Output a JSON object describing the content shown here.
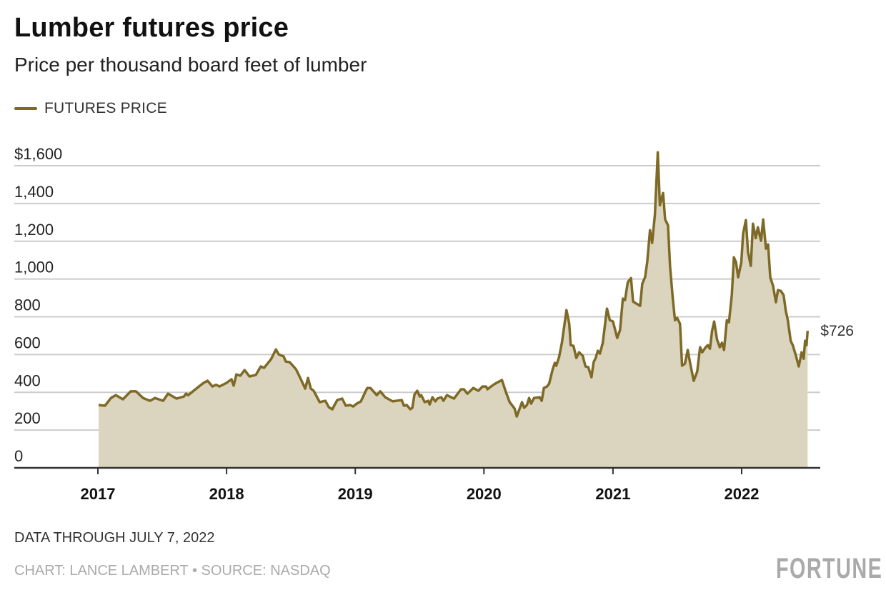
{
  "title": "Lumber futures price",
  "subtitle": "Price per thousand board feet of lumber",
  "legend": {
    "label": "FUTURES PRICE",
    "color": "#7e6a26"
  },
  "footer": {
    "note": "DATA THROUGH JULY 7, 2022",
    "credit": "CHART: LANCE LAMBERT • SOURCE: NASDAQ",
    "logo": "FORTUNE"
  },
  "colors": {
    "line": "#7e6a26",
    "fill": "#dbd4bf",
    "grid": "#cccccc",
    "axis": "#333333"
  },
  "chart_data": {
    "type": "area",
    "title": "Lumber futures price",
    "subtitle": "Price per thousand board feet of lumber",
    "xlabel": "",
    "ylabel": "",
    "ylim": [
      0,
      1600
    ],
    "xlim": [
      "2017-01-01",
      "2022-07-07"
    ],
    "grid": true,
    "legend_position": "top-left",
    "y_ticks": [
      {
        "value": 0,
        "label": "0"
      },
      {
        "value": 200,
        "label": "200"
      },
      {
        "value": 400,
        "label": "400"
      },
      {
        "value": 600,
        "label": "600"
      },
      {
        "value": 800,
        "label": "800"
      },
      {
        "value": 1000,
        "label": "1,000"
      },
      {
        "value": 1200,
        "label": "1,200"
      },
      {
        "value": 1400,
        "label": "1,400"
      },
      {
        "value": 1600,
        "label": "$1,600"
      }
    ],
    "x_ticks": [
      {
        "value": "2017-01-01",
        "label": "2017"
      },
      {
        "value": "2018-01-01",
        "label": "2018"
      },
      {
        "value": "2019-01-01",
        "label": "2019"
      },
      {
        "value": "2020-01-01",
        "label": "2020"
      },
      {
        "value": "2021-01-01",
        "label": "2021"
      },
      {
        "value": "2022-01-01",
        "label": "2022"
      }
    ],
    "end_label": "$726",
    "series": [
      {
        "name": "FUTURES PRICE",
        "points": [
          [
            "2017-01-03",
            333
          ],
          [
            "2017-01-21",
            329
          ],
          [
            "2017-02-07",
            370
          ],
          [
            "2017-02-21",
            385
          ],
          [
            "2017-03-13",
            363
          ],
          [
            "2017-04-04",
            405
          ],
          [
            "2017-04-19",
            405
          ],
          [
            "2017-05-09",
            370
          ],
          [
            "2017-05-29",
            355
          ],
          [
            "2017-06-12",
            370
          ],
          [
            "2017-07-05",
            355
          ],
          [
            "2017-07-19",
            393
          ],
          [
            "2017-08-12",
            367
          ],
          [
            "2017-09-02",
            378
          ],
          [
            "2017-09-08",
            393
          ],
          [
            "2017-09-14",
            385
          ],
          [
            "2017-10-12",
            427
          ],
          [
            "2017-10-28",
            450
          ],
          [
            "2017-11-08",
            461
          ],
          [
            "2017-11-22",
            431
          ],
          [
            "2017-12-02",
            440
          ],
          [
            "2017-12-12",
            431
          ],
          [
            "2018-01-01",
            450
          ],
          [
            "2018-01-15",
            469
          ],
          [
            "2018-01-21",
            435
          ],
          [
            "2018-01-29",
            495
          ],
          [
            "2018-02-09",
            488
          ],
          [
            "2018-02-21",
            518
          ],
          [
            "2018-03-07",
            484
          ],
          [
            "2018-03-25",
            492
          ],
          [
            "2018-04-08",
            537
          ],
          [
            "2018-04-17",
            529
          ],
          [
            "2018-05-07",
            575
          ],
          [
            "2018-05-21",
            627
          ],
          [
            "2018-05-29",
            601
          ],
          [
            "2018-06-12",
            590
          ],
          [
            "2018-06-18",
            563
          ],
          [
            "2018-06-29",
            560
          ],
          [
            "2018-07-17",
            522
          ],
          [
            "2018-07-27",
            484
          ],
          [
            "2018-08-12",
            420
          ],
          [
            "2018-08-20",
            476
          ],
          [
            "2018-08-28",
            420
          ],
          [
            "2018-09-05",
            408
          ],
          [
            "2018-09-22",
            348
          ],
          [
            "2018-10-08",
            355
          ],
          [
            "2018-10-18",
            321
          ],
          [
            "2018-10-28",
            310
          ],
          [
            "2018-11-11",
            359
          ],
          [
            "2018-11-25",
            367
          ],
          [
            "2018-12-05",
            329
          ],
          [
            "2018-12-17",
            333
          ],
          [
            "2018-12-26",
            325
          ],
          [
            "2019-01-05",
            340
          ],
          [
            "2019-01-17",
            352
          ],
          [
            "2019-01-31",
            408
          ],
          [
            "2019-02-04",
            423
          ],
          [
            "2019-02-13",
            423
          ],
          [
            "2019-03-03",
            385
          ],
          [
            "2019-03-13",
            405
          ],
          [
            "2019-03-27",
            374
          ],
          [
            "2019-04-17",
            352
          ],
          [
            "2019-05-13",
            359
          ],
          [
            "2019-05-19",
            329
          ],
          [
            "2019-05-27",
            333
          ],
          [
            "2019-06-06",
            310
          ],
          [
            "2019-06-12",
            318
          ],
          [
            "2019-06-18",
            389
          ],
          [
            "2019-06-26",
            408
          ],
          [
            "2019-07-03",
            378
          ],
          [
            "2019-07-07",
            385
          ],
          [
            "2019-07-17",
            348
          ],
          [
            "2019-07-27",
            355
          ],
          [
            "2019-07-31",
            336
          ],
          [
            "2019-08-08",
            374
          ],
          [
            "2019-08-16",
            352
          ],
          [
            "2019-08-22",
            367
          ],
          [
            "2019-09-02",
            374
          ],
          [
            "2019-09-08",
            355
          ],
          [
            "2019-09-18",
            385
          ],
          [
            "2019-10-08",
            367
          ],
          [
            "2019-10-28",
            416
          ],
          [
            "2019-11-05",
            416
          ],
          [
            "2019-11-15",
            393
          ],
          [
            "2019-12-02",
            423
          ],
          [
            "2019-12-16",
            408
          ],
          [
            "2019-12-28",
            431
          ],
          [
            "2020-01-07",
            431
          ],
          [
            "2020-01-11",
            416
          ],
          [
            "2020-01-21",
            431
          ],
          [
            "2020-02-02",
            446
          ],
          [
            "2020-02-21",
            465
          ],
          [
            "2020-03-02",
            408
          ],
          [
            "2020-03-14",
            348
          ],
          [
            "2020-03-28",
            314
          ],
          [
            "2020-04-03",
            272
          ],
          [
            "2020-04-18",
            348
          ],
          [
            "2020-04-24",
            318
          ],
          [
            "2020-05-02",
            333
          ],
          [
            "2020-05-08",
            370
          ],
          [
            "2020-05-14",
            340
          ],
          [
            "2020-05-22",
            370
          ],
          [
            "2020-06-07",
            374
          ],
          [
            "2020-06-13",
            355
          ],
          [
            "2020-06-19",
            423
          ],
          [
            "2020-06-28",
            431
          ],
          [
            "2020-07-04",
            446
          ],
          [
            "2020-07-14",
            522
          ],
          [
            "2020-07-20",
            556
          ],
          [
            "2020-07-24",
            541
          ],
          [
            "2020-08-01",
            586
          ],
          [
            "2020-08-09",
            662
          ],
          [
            "2020-08-22",
            835
          ],
          [
            "2020-08-30",
            763
          ],
          [
            "2020-09-03",
            650
          ],
          [
            "2020-09-11",
            646
          ],
          [
            "2020-09-19",
            582
          ],
          [
            "2020-09-27",
            612
          ],
          [
            "2020-10-07",
            594
          ],
          [
            "2020-10-15",
            537
          ],
          [
            "2020-10-23",
            533
          ],
          [
            "2020-11-01",
            480
          ],
          [
            "2020-11-07",
            560
          ],
          [
            "2020-11-13",
            582
          ],
          [
            "2020-11-19",
            620
          ],
          [
            "2020-11-25",
            605
          ],
          [
            "2020-12-03",
            662
          ],
          [
            "2020-12-15",
            843
          ],
          [
            "2020-12-23",
            782
          ],
          [
            "2021-01-01",
            775
          ],
          [
            "2021-01-13",
            688
          ],
          [
            "2021-01-21",
            730
          ],
          [
            "2021-01-29",
            896
          ],
          [
            "2021-02-04",
            888
          ],
          [
            "2021-02-12",
            983
          ],
          [
            "2021-02-21",
            1005
          ],
          [
            "2021-02-27",
            881
          ],
          [
            "2021-03-09",
            869
          ],
          [
            "2021-03-19",
            858
          ],
          [
            "2021-03-25",
            975
          ],
          [
            "2021-04-02",
            1009
          ],
          [
            "2021-04-08",
            1089
          ],
          [
            "2021-04-16",
            1259
          ],
          [
            "2021-04-22",
            1191
          ],
          [
            "2021-04-30",
            1342
          ],
          [
            "2021-05-08",
            1671
          ],
          [
            "2021-05-14",
            1391
          ],
          [
            "2021-05-23",
            1455
          ],
          [
            "2021-05-29",
            1315
          ],
          [
            "2021-06-06",
            1285
          ],
          [
            "2021-06-12",
            1066
          ],
          [
            "2021-06-20",
            888
          ],
          [
            "2021-06-26",
            782
          ],
          [
            "2021-07-02",
            794
          ],
          [
            "2021-07-10",
            763
          ],
          [
            "2021-07-16",
            541
          ],
          [
            "2021-07-24",
            552
          ],
          [
            "2021-08-01",
            624
          ],
          [
            "2021-08-08",
            552
          ],
          [
            "2021-08-18",
            461
          ],
          [
            "2021-08-28",
            510
          ],
          [
            "2021-09-05",
            639
          ],
          [
            "2021-09-11",
            612
          ],
          [
            "2021-09-21",
            639
          ],
          [
            "2021-09-27",
            650
          ],
          [
            "2021-10-03",
            631
          ],
          [
            "2021-10-09",
            726
          ],
          [
            "2021-10-15",
            775
          ],
          [
            "2021-10-23",
            680
          ],
          [
            "2021-10-31",
            639
          ],
          [
            "2021-11-06",
            662
          ],
          [
            "2021-11-12",
            624
          ],
          [
            "2021-11-20",
            782
          ],
          [
            "2021-11-26",
            771
          ],
          [
            "2021-12-04",
            915
          ],
          [
            "2021-12-10",
            1115
          ],
          [
            "2021-12-16",
            1089
          ],
          [
            "2021-12-22",
            1009
          ],
          [
            "2021-12-31",
            1089
          ],
          [
            "2022-01-05",
            1240
          ],
          [
            "2022-01-13",
            1312
          ],
          [
            "2022-01-19",
            1142
          ],
          [
            "2022-01-27",
            1070
          ],
          [
            "2022-02-02",
            1293
          ],
          [
            "2022-02-10",
            1217
          ],
          [
            "2022-02-16",
            1274
          ],
          [
            "2022-02-25",
            1202
          ],
          [
            "2022-03-03",
            1315
          ],
          [
            "2022-03-11",
            1161
          ],
          [
            "2022-03-17",
            1183
          ],
          [
            "2022-03-23",
            1009
          ],
          [
            "2022-03-31",
            964
          ],
          [
            "2022-04-08",
            877
          ],
          [
            "2022-04-14",
            941
          ],
          [
            "2022-04-22",
            937
          ],
          [
            "2022-04-30",
            915
          ],
          [
            "2022-05-06",
            832
          ],
          [
            "2022-05-12",
            782
          ],
          [
            "2022-05-20",
            673
          ],
          [
            "2022-05-26",
            650
          ],
          [
            "2022-06-04",
            593
          ],
          [
            "2022-06-12",
            537
          ],
          [
            "2022-06-20",
            612
          ],
          [
            "2022-06-26",
            578
          ],
          [
            "2022-06-30",
            673
          ],
          [
            "2022-07-04",
            650
          ],
          [
            "2022-07-07",
            726
          ]
        ]
      }
    ]
  }
}
